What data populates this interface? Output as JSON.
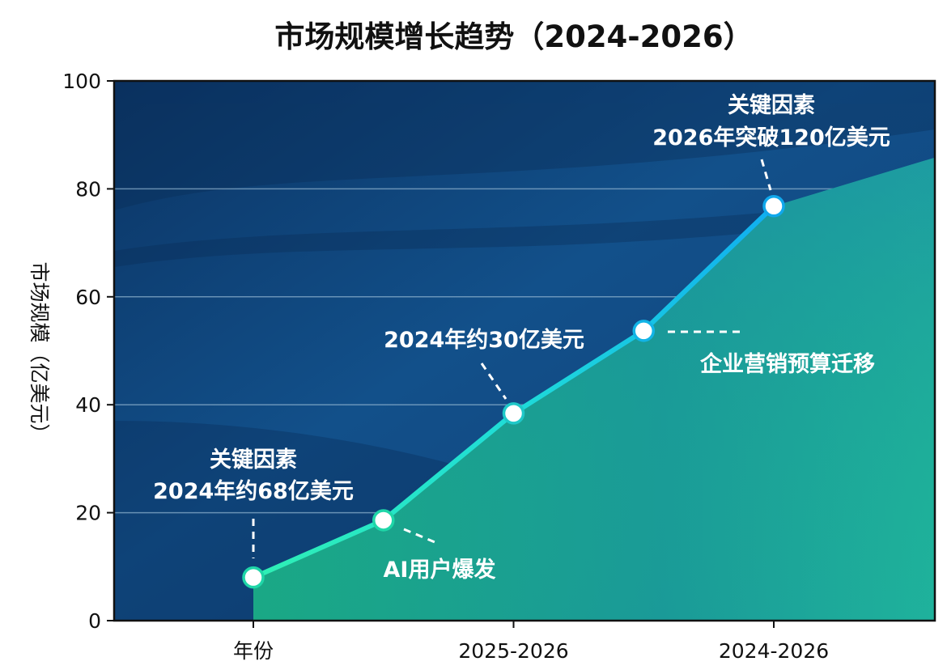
{
  "chart_data": {
    "type": "line",
    "title": "市场规模增长趋势（2024-2026）",
    "xlabel": "",
    "ylabel": "市场规模（亿美元）",
    "ylim": [
      0,
      100
    ],
    "yticks": [
      0,
      20,
      40,
      60,
      80,
      100
    ],
    "grid": true,
    "x_tick_labels": [
      {
        "index": 0,
        "label": "年份"
      },
      {
        "index": 2,
        "label": "2025-2026"
      },
      {
        "index": 4,
        "label": "2024-2026"
      }
    ],
    "series": [
      {
        "name": "市场规模",
        "x": [
          0,
          1,
          2,
          3,
          4
        ],
        "values": [
          8,
          18.6,
          38.4,
          53.7,
          76.8
        ],
        "line_color_start": "#2ee8b0",
        "line_color_end": "#12b5ee",
        "marker_fill": "#ffffff"
      }
    ],
    "annotations": [
      {
        "point_index": 0,
        "lines": [
          "关键因素",
          "2024年约68亿美元"
        ]
      },
      {
        "point_index": 1,
        "lines": [
          "AI用户爆发"
        ]
      },
      {
        "point_index": 2,
        "lines": [
          "2024年约30亿美元"
        ]
      },
      {
        "point_index": 3,
        "lines": [
          "企业营销预算迁移"
        ]
      },
      {
        "point_index": 4,
        "lines": [
          "关键因素",
          "2026年突破120亿美元"
        ]
      }
    ],
    "colors": {
      "background_top": "#0c3768",
      "background_bottom": "#0f4a82",
      "area_fill_start": "#1aa887",
      "area_fill_end": "#1fb39a",
      "grid": "#8fb3cf"
    }
  }
}
